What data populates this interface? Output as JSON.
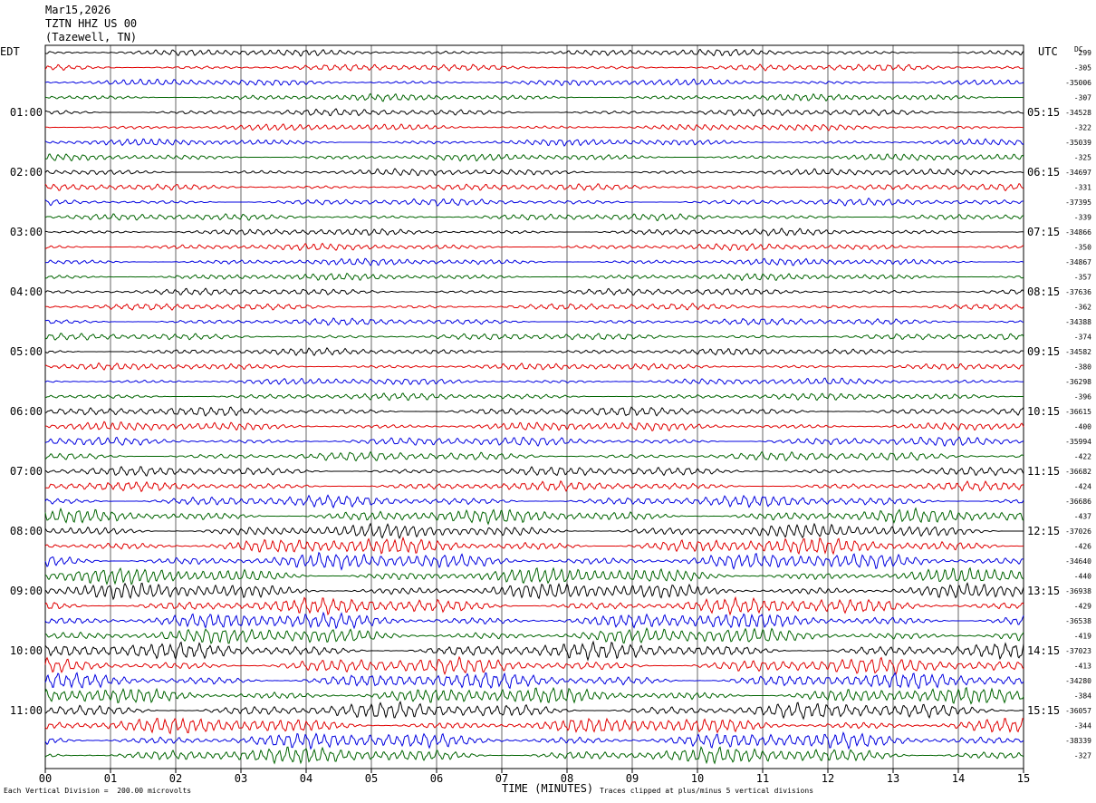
{
  "header": {
    "date": "Mar15,2026",
    "station": "TZTN HHZ US 00",
    "location": "(Tazewell, TN)"
  },
  "left_zone": "EDT",
  "right_zone": "UTC",
  "dc_label": "DC",
  "footer": {
    "scale": "Each Vertical Division =  200.00 microvolts",
    "xlabel": "TIME (MINUTES)",
    "clip": "Traces clipped at plus/minus 5 vertical divisions"
  },
  "colors": {
    "row1": "#000000",
    "row2": "#e00000",
    "row3": "#0000e0",
    "row4": "#006400"
  },
  "chart_data": {
    "type": "line",
    "x_ticks": [
      "00",
      "01",
      "02",
      "03",
      "04",
      "05",
      "06",
      "07",
      "08",
      "09",
      "10",
      "11",
      "12",
      "13",
      "14",
      "15"
    ],
    "x_range": [
      0,
      15
    ],
    "left_hour_labels": [
      "01:00",
      "02:00",
      "03:00",
      "04:00",
      "05:00",
      "06:00",
      "07:00",
      "08:00",
      "09:00",
      "10:00",
      "11:00"
    ],
    "right_hour_labels": [
      "05:15",
      "06:15",
      "07:15",
      "08:15",
      "09:15",
      "10:15",
      "11:15",
      "12:15",
      "13:15",
      "14:15",
      "15:15"
    ],
    "dc_offsets": [
      "299",
      "-305",
      "-35006",
      "-307",
      "-34528",
      "-322",
      "-35039",
      "-325",
      "-34697",
      "-331",
      "-37395",
      "-339",
      "-34866",
      "-350",
      "-34867",
      "-357",
      "-37636",
      "-362",
      "-34388",
      "-374",
      "-34582",
      "-380",
      "-36298",
      "-396",
      "-36615",
      "-400",
      "-35994",
      "-422",
      "-36682",
      "-424",
      "-36686",
      "-437",
      "-37026",
      "-426",
      "-34640",
      "-440",
      "-36938",
      "-429",
      "-36538",
      "-419",
      "-37023",
      "-413",
      "-34280",
      "-384",
      "-36057",
      "-344",
      "-38339",
      "-327"
    ],
    "trace_amplitude": [
      3,
      3,
      3,
      3,
      3,
      3,
      3,
      3,
      3,
      3,
      3,
      3,
      3,
      3,
      3,
      3,
      3,
      3,
      3,
      3,
      3,
      3,
      3,
      3,
      4,
      4,
      4,
      4,
      4,
      4,
      5,
      6,
      6,
      7,
      7,
      7,
      7,
      7,
      7,
      7,
      7,
      7,
      7,
      7,
      7,
      7,
      7,
      7
    ],
    "grid": true
  }
}
